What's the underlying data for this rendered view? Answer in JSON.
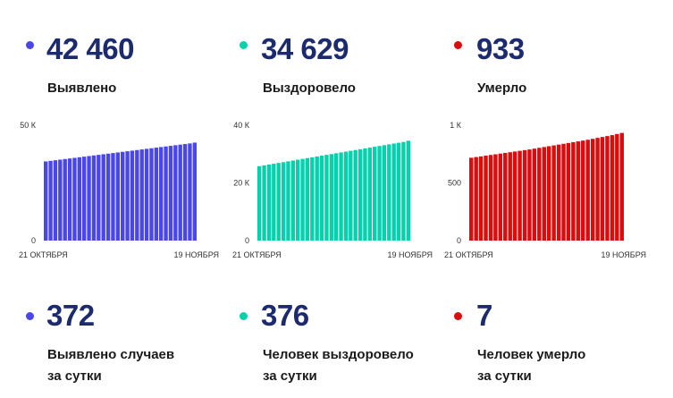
{
  "stats_top": [
    {
      "value": "42 460",
      "label": "Выявлено",
      "color": "#4a47ea"
    },
    {
      "value": "34 629",
      "label": "Выздоровело",
      "color": "#05d1ac"
    },
    {
      "value": "933",
      "label": "Умерло",
      "color": "#dd0b0b"
    }
  ],
  "stats_bottom": [
    {
      "value": "372",
      "label_line1": "Выявлено случаев",
      "label_line2": "за сутки",
      "color": "#4a47ea"
    },
    {
      "value": "376",
      "label_line1": "Человек выздоровело",
      "label_line2": "за сутки",
      "color": "#05d1ac"
    },
    {
      "value": "7",
      "label_line1": "Человек умерло",
      "label_line2": "за сутки",
      "color": "#dd0b0b"
    }
  ],
  "chart_data": [
    {
      "type": "bar",
      "color": "#4a47ea",
      "x_start_label": "21 ОКТЯБРЯ",
      "x_end_label": "19 НОЯБРЯ",
      "ylim": [
        0,
        50000
      ],
      "yticks": [
        {
          "value": 0,
          "label": "0"
        },
        {
          "value": 50000,
          "label": "50 К"
        }
      ],
      "values": [
        34300,
        34560,
        34820,
        35080,
        35340,
        35600,
        35860,
        36120,
        36380,
        36640,
        36900,
        37160,
        37420,
        37680,
        37940,
        38200,
        38460,
        38720,
        38980,
        39240,
        39500,
        39760,
        40020,
        40280,
        40540,
        40800,
        41060,
        41320,
        41580,
        41840,
        42100,
        42460
      ]
    },
    {
      "type": "bar",
      "color": "#05d1ac",
      "x_start_label": "21 ОКТЯБРЯ",
      "x_end_label": "19 НОЯБРЯ",
      "ylim": [
        0,
        40000
      ],
      "yticks": [
        {
          "value": 0,
          "label": "0"
        },
        {
          "value": 20000,
          "label": "20 К"
        },
        {
          "value": 40000,
          "label": "40 К"
        }
      ],
      "values": [
        25800,
        26080,
        26360,
        26640,
        26920,
        27200,
        27480,
        27760,
        28040,
        28320,
        28600,
        28880,
        29160,
        29440,
        29720,
        30000,
        30280,
        30560,
        30840,
        31120,
        31400,
        31680,
        31960,
        32240,
        32520,
        32800,
        33080,
        33360,
        33640,
        33920,
        34200,
        34629
      ]
    },
    {
      "type": "bar",
      "color": "#dd0b0b",
      "x_start_label": "21 ОКТЯБРЯ",
      "x_end_label": "19 НОЯБРЯ",
      "ylim": [
        0,
        1000
      ],
      "yticks": [
        {
          "value": 0,
          "label": "0"
        },
        {
          "value": 500,
          "label": "500"
        },
        {
          "value": 1000,
          "label": "1 К"
        }
      ],
      "values": [
        718,
        724,
        730,
        736,
        742,
        748,
        754,
        760,
        766,
        772,
        778,
        784,
        790,
        797,
        804,
        811,
        818,
        825,
        832,
        839,
        846,
        853,
        860,
        867,
        874,
        882,
        890,
        898,
        906,
        914,
        924,
        933
      ]
    }
  ]
}
